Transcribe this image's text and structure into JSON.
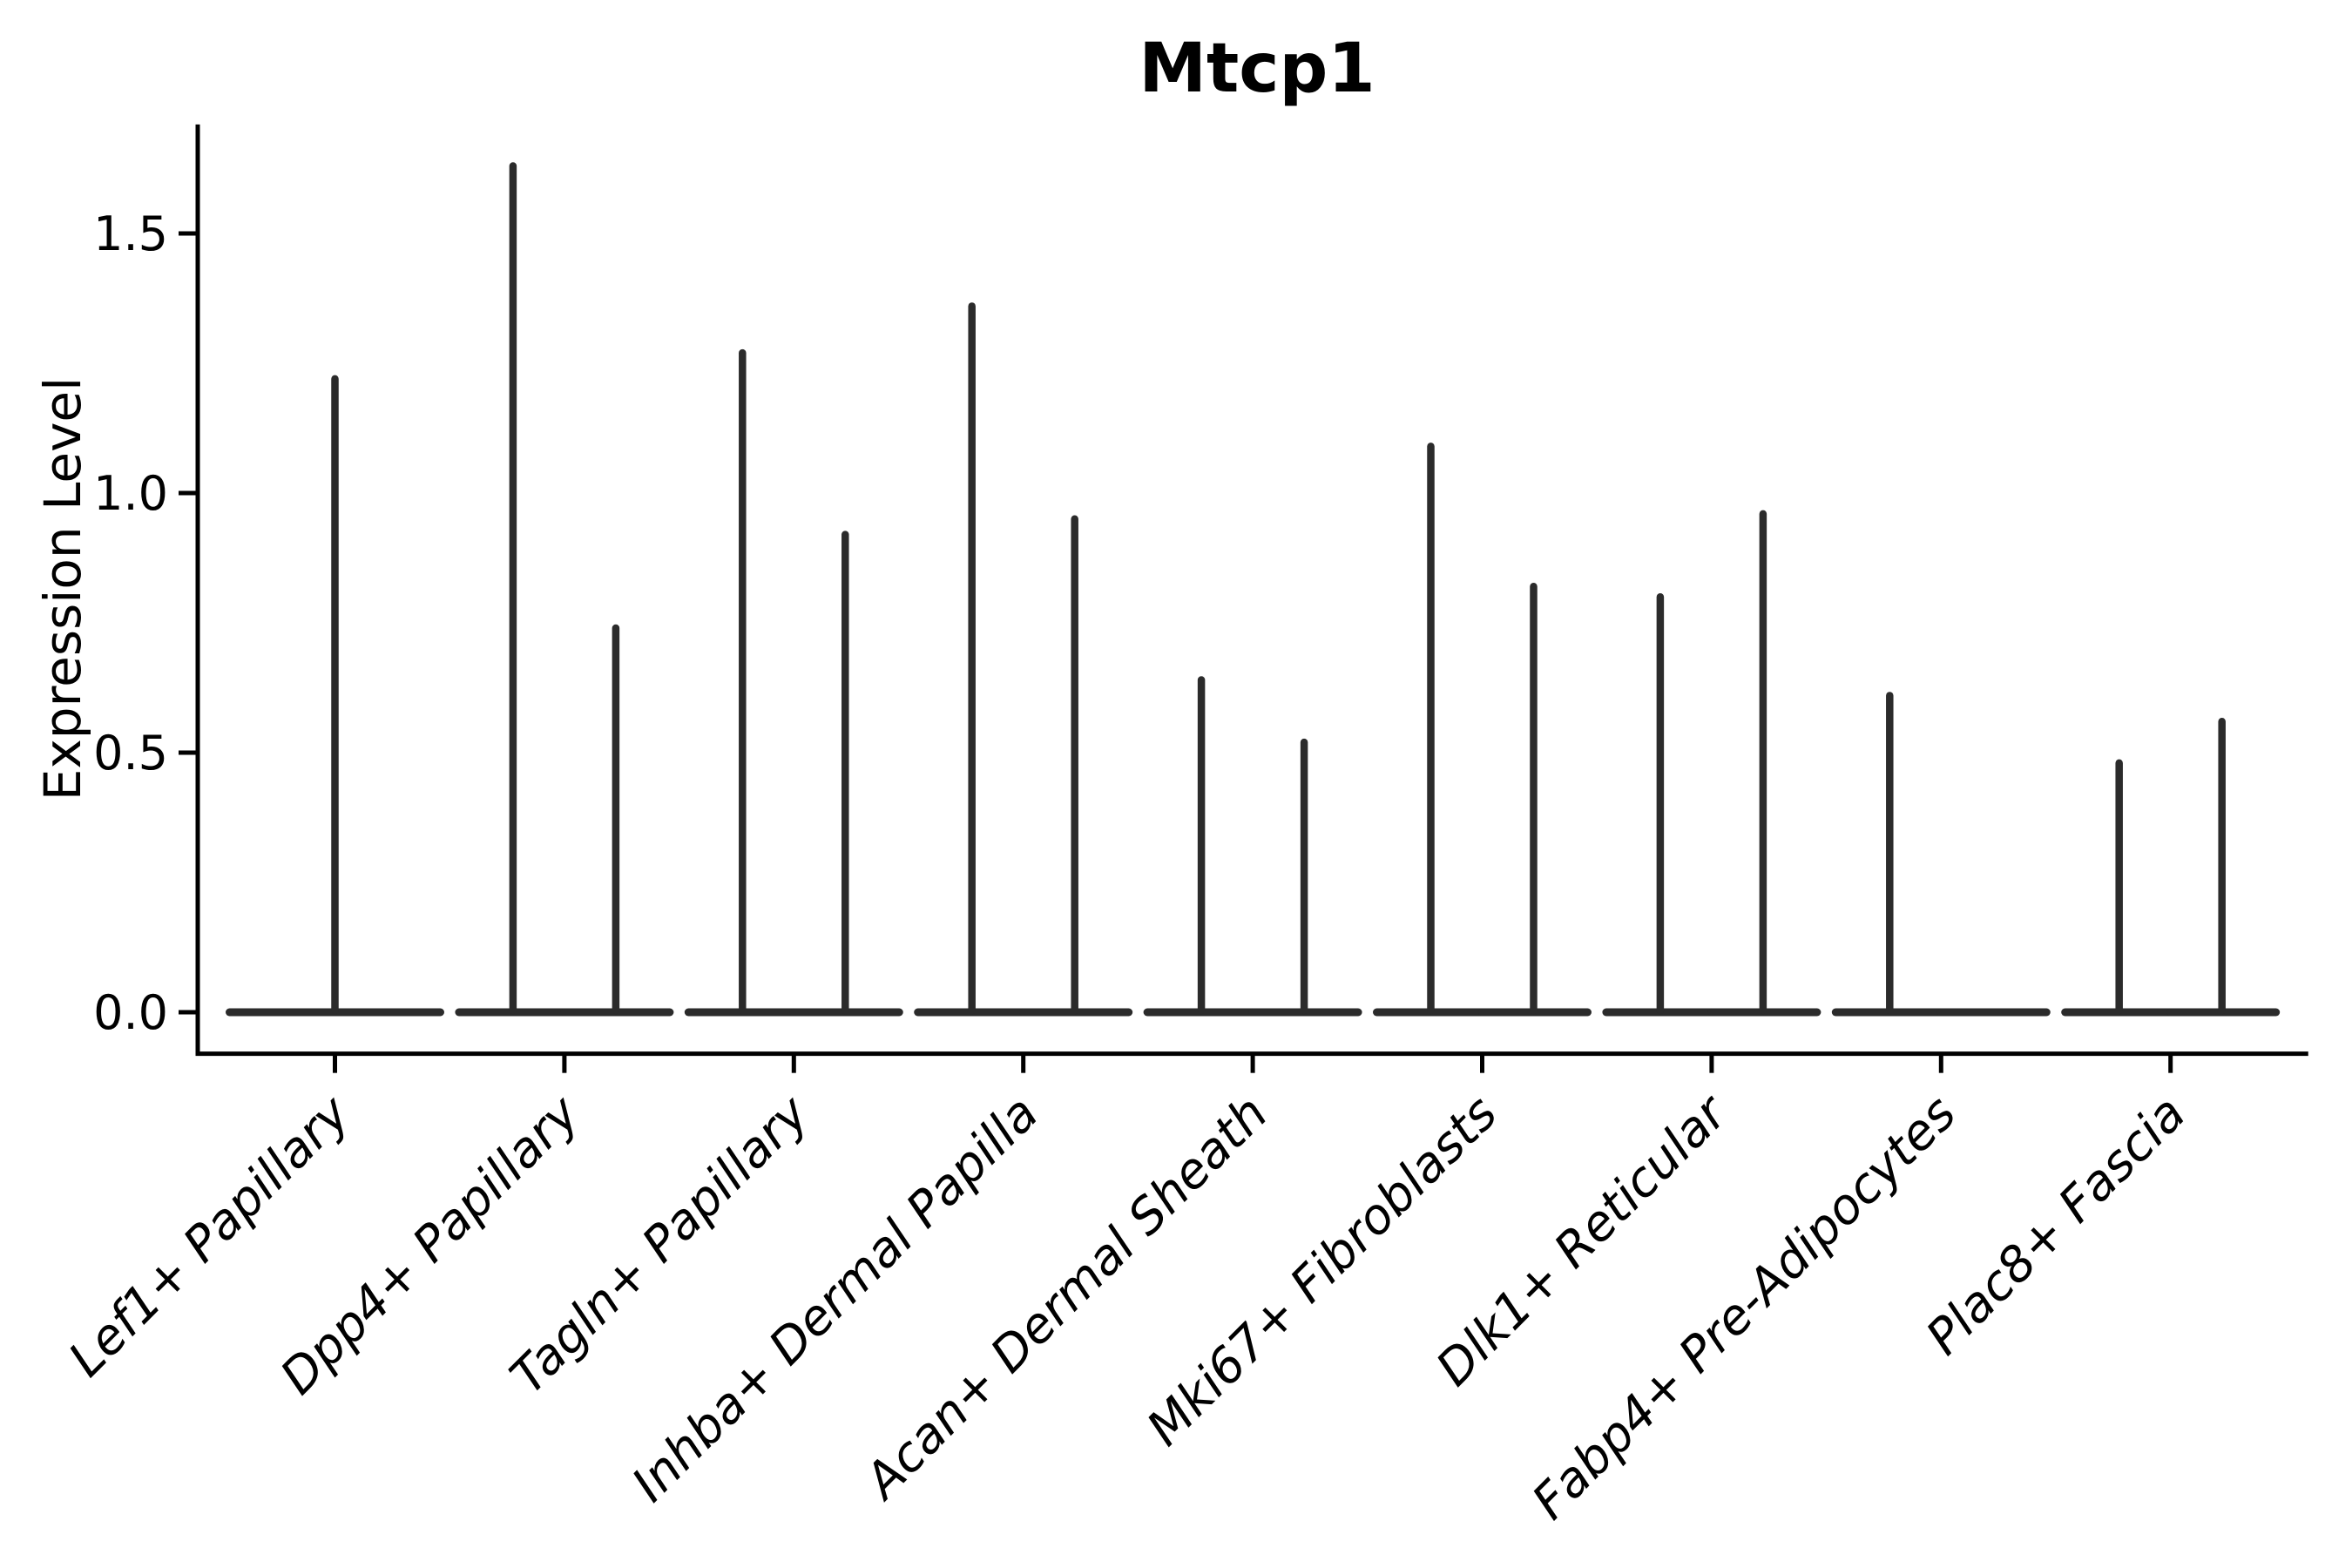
{
  "title": "Mtcp1",
  "chart_data": {
    "type": "violin",
    "title": "Mtcp1",
    "xlabel": "",
    "ylabel": "Expression Level",
    "yticks": [
      0.0,
      0.5,
      1.0,
      1.5
    ],
    "ytick_labels": [
      "0.0",
      "0.5",
      "1.0",
      "1.5"
    ],
    "ylim": [
      -0.08,
      1.71
    ],
    "grid": false,
    "legend": "none",
    "description": "Violin plot of Mtcp1 expression; each violin collapses to a flat baseline at 0 with a thin density spike up to the max expression value. Seven categories have two dodged violins (left/right), Lef1+ Papillary has one centered full-width violin, Fabp4+ Pre-Adipocytes has a left spike only (right violin flat at 0).",
    "categories": [
      {
        "label": "Lef1+ Papillary",
        "violins": [
          {
            "pos": "center",
            "max": 1.22
          }
        ]
      },
      {
        "label": "Dpp4+ Papillary",
        "violins": [
          {
            "pos": "left",
            "max": 1.63
          },
          {
            "pos": "right",
            "max": 0.74
          }
        ]
      },
      {
        "label": "Tagln+ Papillary",
        "violins": [
          {
            "pos": "left",
            "max": 1.27
          },
          {
            "pos": "right",
            "max": 0.92
          }
        ]
      },
      {
        "label": "Inhba+ Dermal Papilla",
        "violins": [
          {
            "pos": "left",
            "max": 1.36
          },
          {
            "pos": "right",
            "max": 0.95
          }
        ]
      },
      {
        "label": "Acan+ Dermal Sheath",
        "violins": [
          {
            "pos": "left",
            "max": 0.64
          },
          {
            "pos": "right",
            "max": 0.52
          }
        ]
      },
      {
        "label": "Mki67+ Fibroblasts",
        "violins": [
          {
            "pos": "left",
            "max": 1.09
          },
          {
            "pos": "right",
            "max": 0.82
          }
        ]
      },
      {
        "label": "Dlk1+ Reticular",
        "violins": [
          {
            "pos": "left",
            "max": 0.8
          },
          {
            "pos": "right",
            "max": 0.96
          }
        ]
      },
      {
        "label": "Fabp4+ Pre-Adipocytes",
        "violins": [
          {
            "pos": "left",
            "max": 0.61
          },
          {
            "pos": "right",
            "max": 0.0
          }
        ]
      },
      {
        "label": "Plac8+ Fascia",
        "violins": [
          {
            "pos": "left",
            "max": 0.48
          },
          {
            "pos": "right",
            "max": 0.56
          }
        ]
      }
    ],
    "colors": {
      "violin": "#2b2b2b",
      "axis": "#000000",
      "text": "#000000",
      "background": "#ffffff"
    }
  }
}
